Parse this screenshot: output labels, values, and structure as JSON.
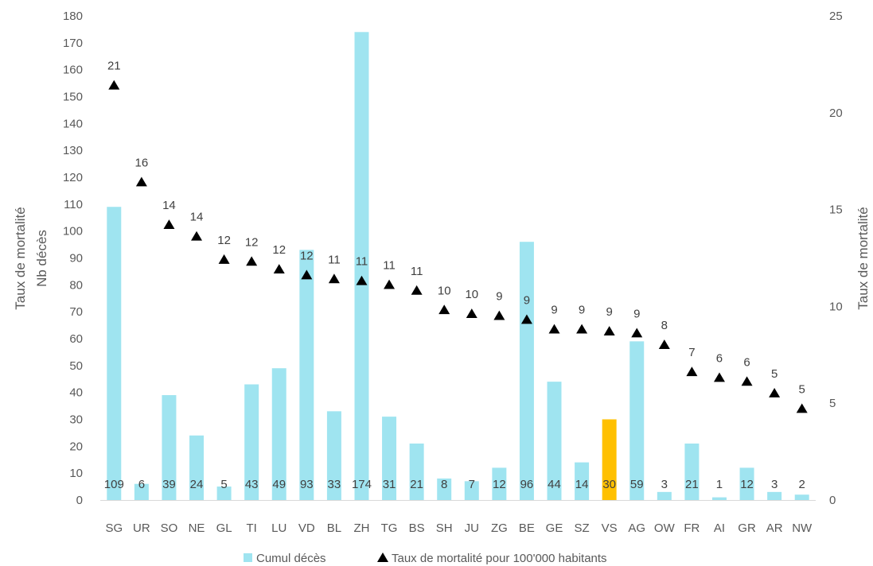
{
  "chart_data": {
    "type": "bar",
    "categories": [
      "SG",
      "UR",
      "SO",
      "NE",
      "GL",
      "TI",
      "LU",
      "VD",
      "BL",
      "ZH",
      "TG",
      "BS",
      "SH",
      "JU",
      "ZG",
      "BE",
      "GE",
      "SZ",
      "VS",
      "AG",
      "OW",
      "FR",
      "AI",
      "GR",
      "AR",
      "NW"
    ],
    "series": [
      {
        "name": "Cumul décès",
        "type": "bar",
        "axis": "left",
        "color": "#9fe4f0",
        "values": [
          109,
          6,
          39,
          24,
          5,
          43,
          49,
          93,
          33,
          174,
          31,
          21,
          8,
          7,
          12,
          96,
          44,
          14,
          30,
          59,
          3,
          21,
          1,
          12,
          3,
          2
        ],
        "labels": [
          "109",
          "6",
          "39",
          "24",
          "5",
          "43",
          "49",
          "93",
          "33",
          "174",
          "31",
          "21",
          "8",
          "7",
          "12",
          "96",
          "44",
          "14",
          "30",
          "59",
          "3",
          "21",
          "1",
          "12",
          "3",
          "2"
        ]
      },
      {
        "name": "Taux de mortalité pour 100'000 habitants",
        "type": "scatter",
        "axis": "right",
        "color": "#000000",
        "values": [
          21.4,
          16.4,
          14.2,
          13.6,
          12.4,
          12.3,
          11.9,
          11.6,
          11.4,
          11.3,
          11.1,
          10.8,
          9.8,
          9.6,
          9.5,
          9.3,
          8.8,
          8.8,
          8.7,
          8.6,
          8.0,
          6.6,
          6.3,
          6.1,
          5.5,
          4.7
        ],
        "labels": [
          "21",
          "16",
          "14",
          "14",
          "12",
          "12",
          "12",
          "12",
          "11",
          "11",
          "11",
          "11",
          "10",
          "10",
          "9",
          "9",
          "9",
          "9",
          "9",
          "9",
          "8",
          "7",
          "6",
          "6",
          "5",
          "5"
        ]
      }
    ],
    "highlight": {
      "category": "VS",
      "color": "#ffc000"
    },
    "y_left": {
      "label_lines": [
        "Taux de mortalité",
        "Nb décès"
      ],
      "ylim": [
        0,
        180
      ],
      "ticks": [
        0,
        10,
        20,
        30,
        40,
        50,
        60,
        70,
        80,
        90,
        100,
        110,
        120,
        130,
        140,
        150,
        160,
        170,
        180
      ]
    },
    "y_right": {
      "label": "Taux de mortalité",
      "ylim": [
        0,
        25
      ],
      "ticks": [
        0,
        5,
        10,
        15,
        20,
        25
      ]
    },
    "grid": false,
    "legend": {
      "position": "bottom"
    }
  }
}
